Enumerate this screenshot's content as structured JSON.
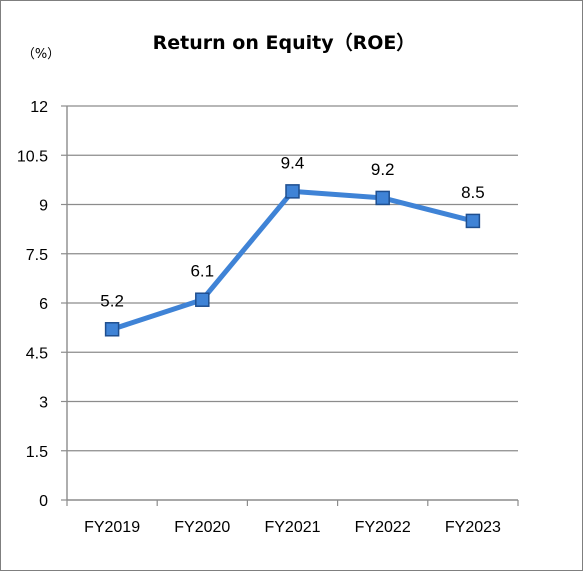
{
  "chart_data": {
    "type": "line",
    "title": "Return on Equity（ROE）",
    "unit_label": "（%）",
    "categories": [
      "FY2019",
      "FY2020",
      "FY2021",
      "FY2022",
      "FY2023"
    ],
    "series": [
      {
        "values": [
          5.2,
          6.1,
          9.4,
          9.2,
          8.5
        ],
        "data_labels": [
          "5.2",
          "6.1",
          "9.4",
          "9.2",
          "8.5"
        ]
      }
    ],
    "y_ticks": [
      "0",
      "1.5",
      "3",
      "4.5",
      "6",
      "7.5",
      "9",
      "10.5",
      "12"
    ],
    "y_tick_values": [
      0,
      1.5,
      3,
      4.5,
      6,
      7.5,
      9,
      10.5,
      12
    ],
    "ylim": [
      0,
      12
    ],
    "grid": true,
    "legend": "none",
    "colors": {
      "line": "#3f83d6",
      "marker_fill": "#3f83d6",
      "marker_stroke": "#1f4f8f",
      "grid": "#8c8c8c",
      "axis": "#8c8c8c"
    }
  }
}
